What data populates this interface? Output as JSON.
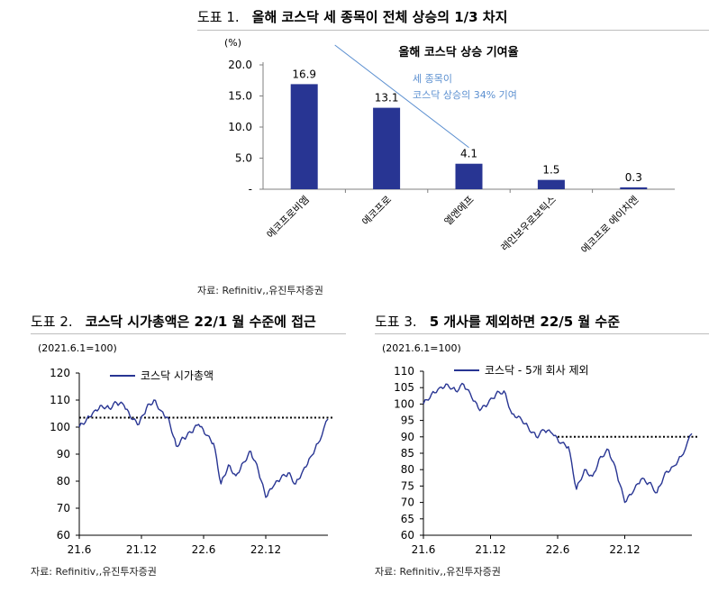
{
  "figure1": {
    "number": "도표 1.",
    "title": "올해 코스닥 세 종목이 전체 상승의 1/3 차지",
    "source": "자료: Refinitiv,,유진투자증권"
  },
  "figure2": {
    "number": "도표 2.",
    "title": "코스닥 시가총액은 22/1 월 수준에 접근",
    "source": "자료: Refinitiv,,유진투자증권"
  },
  "figure3": {
    "number": "도표 3.",
    "title": "5 개사를 제외하면 22/5 월 수준",
    "source": "자료: Refinitiv,,유진투자증권"
  },
  "colors": {
    "bar": "#283593",
    "line": "#283593",
    "annot": "#5b8fd0",
    "axis": "#7f7f7f"
  },
  "chart_data": [
    {
      "id": "bar",
      "type": "bar",
      "title": "올해 코스닥 상승 기여율",
      "unit_label": "(%)",
      "categories": [
        "에코프로비엠",
        "에코프로",
        "엘앤에프",
        "레인보우로보틱스",
        "에코프로 에이치엔"
      ],
      "values": [
        16.9,
        13.1,
        4.1,
        1.5,
        0.3
      ],
      "value_labels": [
        "16.9",
        "13.1",
        "4.1",
        "1.5",
        "0.3"
      ],
      "ylim": [
        0,
        20
      ],
      "yticks": [
        "20.0",
        "15.0",
        "10.0",
        "5.0",
        "-"
      ],
      "annotation": [
        "세 종목이",
        "코스닥 상승의 34% 기여"
      ]
    },
    {
      "id": "mcap",
      "type": "line",
      "unit_label": "(2021.6.1=100)",
      "legend": "코스닥 시가총액",
      "ylim": [
        60,
        120
      ],
      "yticks": [
        "120",
        "110",
        "100",
        "90",
        "80",
        "70",
        "60"
      ],
      "xticks": [
        "21.6",
        "21.12",
        "22.6",
        "22.12"
      ],
      "reference_line": 103.5,
      "x": [
        0,
        0.03,
        0.06,
        0.09,
        0.12,
        0.15,
        0.18,
        0.21,
        0.24,
        0.27,
        0.3,
        0.33,
        0.36,
        0.39,
        0.42,
        0.45,
        0.48,
        0.51,
        0.54,
        0.57,
        0.6,
        0.63,
        0.66,
        0.69,
        0.72,
        0.75,
        0.78,
        0.81,
        0.84,
        0.87,
        0.9,
        0.93,
        0.96,
        1.0
      ],
      "y": [
        100,
        103,
        106,
        108,
        107,
        109,
        108,
        103,
        101,
        107,
        110,
        106,
        103,
        93,
        96,
        98,
        101,
        97,
        94,
        79,
        86,
        82,
        87,
        91,
        84,
        74,
        78,
        81,
        83,
        79,
        84,
        89,
        94,
        103
      ]
    },
    {
      "id": "ex5",
      "type": "line",
      "unit_label": "(2021.6.1=100)",
      "legend": "코스닥 - 5개 회사 제외",
      "ylim": [
        60,
        110
      ],
      "yticks": [
        "110",
        "105",
        "100",
        "95",
        "90",
        "85",
        "80",
        "75",
        "70",
        "65",
        "60"
      ],
      "xticks": [
        "21.6",
        "21.12",
        "22.6",
        "22.12"
      ],
      "reference_line": 90,
      "x": [
        0,
        0.03,
        0.06,
        0.09,
        0.12,
        0.15,
        0.18,
        0.21,
        0.24,
        0.27,
        0.3,
        0.33,
        0.36,
        0.39,
        0.42,
        0.45,
        0.48,
        0.51,
        0.54,
        0.57,
        0.6,
        0.63,
        0.66,
        0.69,
        0.72,
        0.75,
        0.78,
        0.81,
        0.84,
        0.87,
        0.9,
        0.93,
        0.96,
        1.0
      ],
      "y": [
        100,
        103,
        105,
        106,
        104,
        106,
        102,
        98,
        100,
        103,
        104,
        97,
        96,
        93,
        90,
        92,
        91,
        88,
        87,
        74,
        80,
        78,
        84,
        86,
        79,
        70,
        73,
        77,
        76,
        73,
        79,
        81,
        84,
        91
      ]
    }
  ]
}
